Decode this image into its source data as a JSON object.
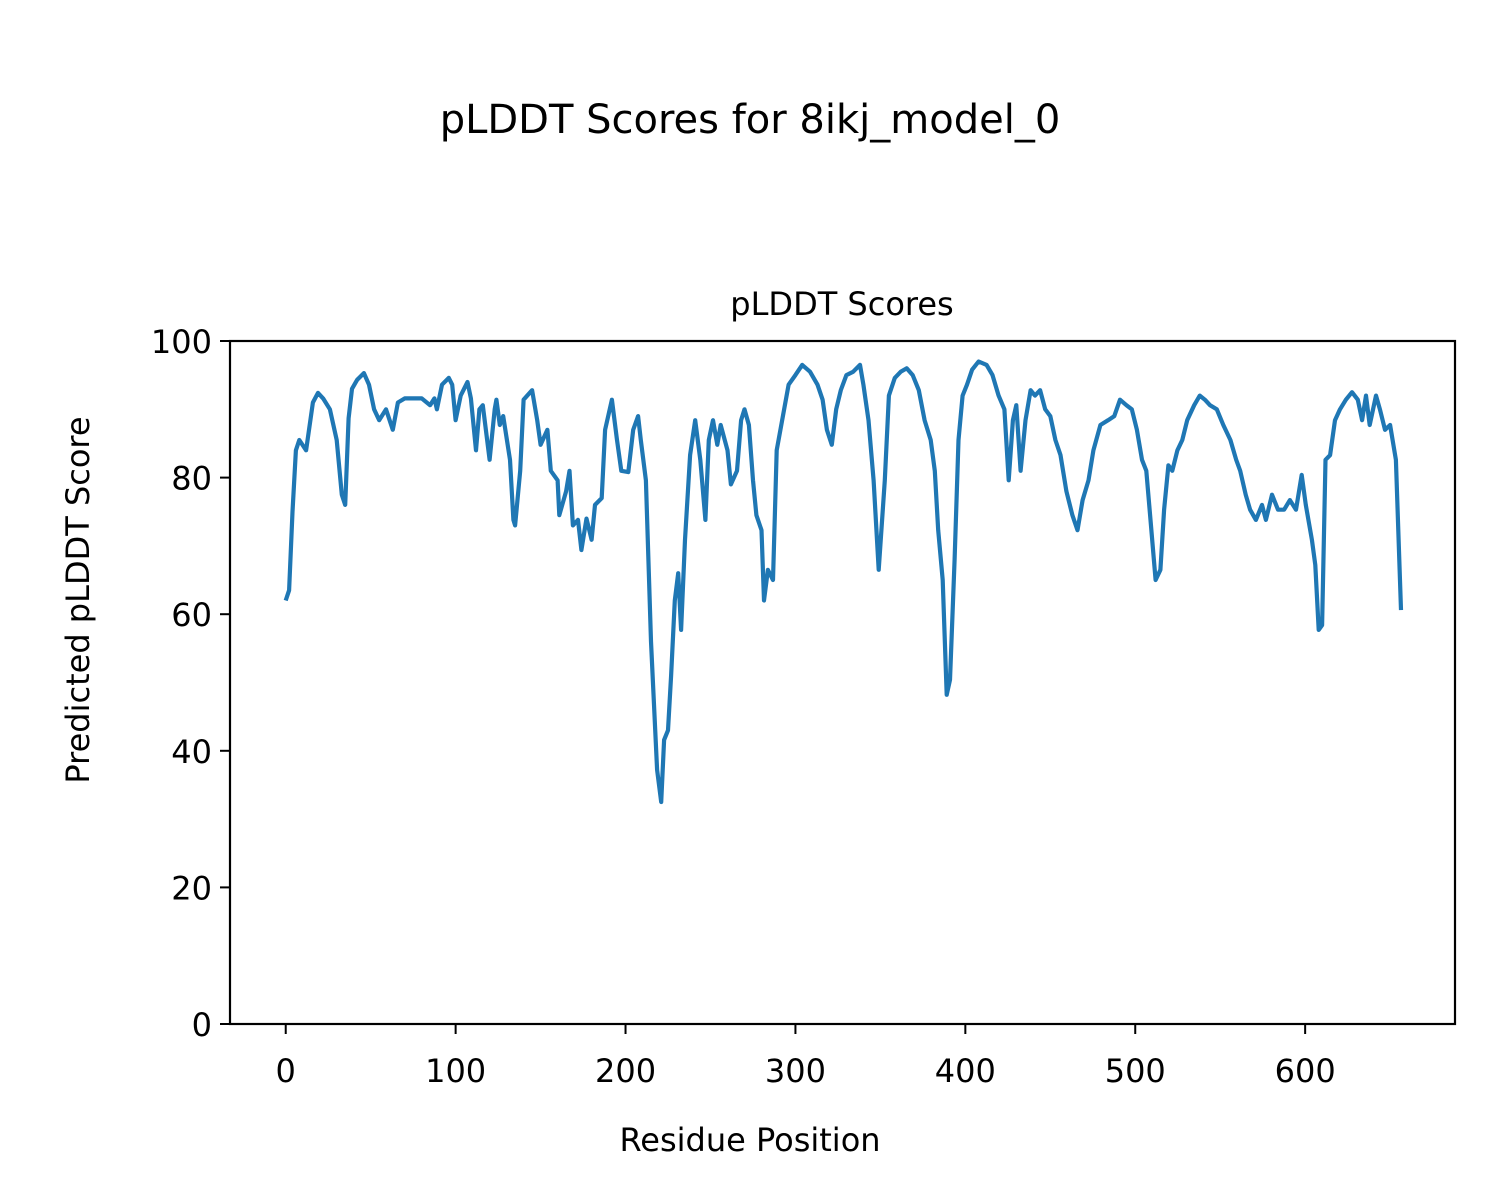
{
  "figure_title": "pLDDT Scores for 8ikj_model_0",
  "chart_data": {
    "type": "line",
    "title": "pLDDT Scores",
    "xlabel": "Residue Position",
    "ylabel": "Predicted pLDDT Score",
    "xlim": [
      -32.8,
      688.2
    ],
    "ylim": [
      0,
      100
    ],
    "xticks": [
      0,
      100,
      200,
      300,
      400,
      500,
      600
    ],
    "yticks": [
      0,
      20,
      40,
      60,
      80,
      100
    ],
    "grid": false,
    "series": [
      {
        "name": "pLDDT",
        "color": "#1f77b4",
        "x": [
          0,
          2,
          4,
          6,
          8,
          12,
          16,
          19,
          22,
          26,
          30,
          33,
          35,
          37,
          39,
          42,
          46,
          49,
          52,
          55,
          59,
          63,
          66,
          70,
          75,
          80,
          85,
          87.5,
          89,
          92,
          96,
          98,
          100,
          103,
          107,
          109,
          112,
          114,
          116,
          120,
          123,
          124,
          126,
          128,
          132,
          134,
          135,
          138,
          140,
          145,
          148,
          150,
          154,
          156,
          160,
          161,
          165,
          167,
          169,
          172,
          174,
          177,
          180,
          182,
          186,
          188,
          192,
          195,
          197.5,
          201.6,
          204.5,
          207.4,
          209,
          212,
          215,
          218.6,
          221,
          222.7,
          225,
          226.8,
          229,
          231,
          232.7,
          235,
          238,
          241,
          244,
          247,
          249,
          251.5,
          254,
          256,
          260,
          262,
          265.6,
          268,
          270,
          272.6,
          275,
          277,
          280,
          281.5,
          283.8,
          286.8,
          289,
          292.6,
          296,
          300,
          304,
          308.6,
          313,
          316,
          318.5,
          321.4,
          324,
          326.7,
          330,
          334,
          338,
          340,
          343,
          346,
          349,
          352.6,
          355,
          358.5,
          362,
          365.5,
          369,
          372.6,
          376,
          379.6,
          382,
          384,
          386.7,
          389,
          391,
          393.7,
          396,
          398.4,
          401,
          404,
          407.8,
          412.5,
          416,
          419.6,
          423,
          425.5,
          428,
          430,
          432.5,
          435.4,
          438.4,
          441,
          444,
          447,
          450,
          453,
          456,
          459.5,
          463,
          466,
          469,
          472.5,
          475.4,
          479.5,
          484,
          487.7,
          491,
          494.8,
          498,
          501,
          504,
          506.5,
          509,
          512,
          514.8,
          517,
          519.5,
          521.8,
          524.8,
          527.7,
          530.6,
          534.7,
          538,
          541,
          544,
          548,
          551.8,
          556,
          559.4,
          561.8,
          565,
          567.6,
          571,
          574.6,
          576.9,
          580.5,
          584,
          587.6,
          591,
          594.6,
          598,
          600.4,
          604,
          606,
          608,
          610,
          612,
          614.7,
          617.6,
          620.5,
          624,
          627.6,
          631,
          633.5,
          635.8,
          638,
          641.7,
          644,
          647,
          650,
          653.4,
          656.4
        ],
        "y": [
          62,
          63.5,
          75,
          84,
          85.5,
          84,
          91,
          92.4,
          91.6,
          90,
          85.5,
          77.5,
          76,
          88.7,
          93,
          94.3,
          95.3,
          93.6,
          90,
          88.4,
          90,
          87,
          91,
          91.6,
          91.6,
          91.6,
          90.6,
          91.6,
          90,
          93.6,
          94.6,
          93.6,
          88.4,
          92,
          94,
          91.6,
          84,
          90,
          90.6,
          82.6,
          90,
          91.4,
          87.7,
          89,
          82.6,
          73.8,
          73,
          81,
          91.4,
          92.8,
          88.4,
          84.8,
          87,
          81,
          79.6,
          74.5,
          78,
          81,
          73,
          73.8,
          69.4,
          74,
          70.9,
          76,
          77,
          87,
          91.4,
          85.5,
          81,
          80.8,
          87,
          89,
          85.5,
          79.6,
          56,
          37.2,
          32.5,
          41.6,
          43,
          51,
          62,
          66,
          57.7,
          70.9,
          83.3,
          88.4,
          82.6,
          73.8,
          85.5,
          88.4,
          84.8,
          87.7,
          84,
          79,
          81,
          88.4,
          90,
          87.7,
          79.6,
          74.5,
          72.3,
          62,
          66.5,
          65,
          84,
          89,
          93.6,
          95,
          96.5,
          95.5,
          93.6,
          91.4,
          87,
          84.8,
          90,
          92.8,
          95,
          95.5,
          96.5,
          93.6,
          88.4,
          79.6,
          66.5,
          79.6,
          92,
          94.6,
          95.5,
          96,
          95,
          92.8,
          88.4,
          85.5,
          81,
          72.3,
          65,
          48.2,
          50.4,
          68,
          85.5,
          92,
          93.6,
          95.8,
          97,
          96.5,
          95,
          92,
          90,
          79.6,
          88.4,
          90.6,
          81,
          88.4,
          92.8,
          92,
          92.8,
          90,
          89,
          85.5,
          83.3,
          78,
          74.5,
          72.3,
          76.7,
          79.6,
          84,
          87.7,
          88.4,
          89,
          91.4,
          90.6,
          90,
          87,
          82.6,
          81,
          73.8,
          65,
          66.5,
          75.3,
          81.8,
          81,
          84,
          85.5,
          88.4,
          90.6,
          92,
          91.4,
          90.6,
          90,
          87.7,
          85.5,
          82.6,
          81,
          77.5,
          75.3,
          73.8,
          76,
          73.8,
          77.5,
          75.3,
          75.3,
          76.7,
          75.3,
          80.4,
          76,
          70.9,
          67.2,
          57.7,
          58.4,
          82.6,
          83.3,
          88.4,
          90,
          91.4,
          92.5,
          91.4,
          88.4,
          92,
          87.7,
          92,
          90,
          87,
          87.7,
          82.6,
          60.6
        ]
      }
    ]
  }
}
